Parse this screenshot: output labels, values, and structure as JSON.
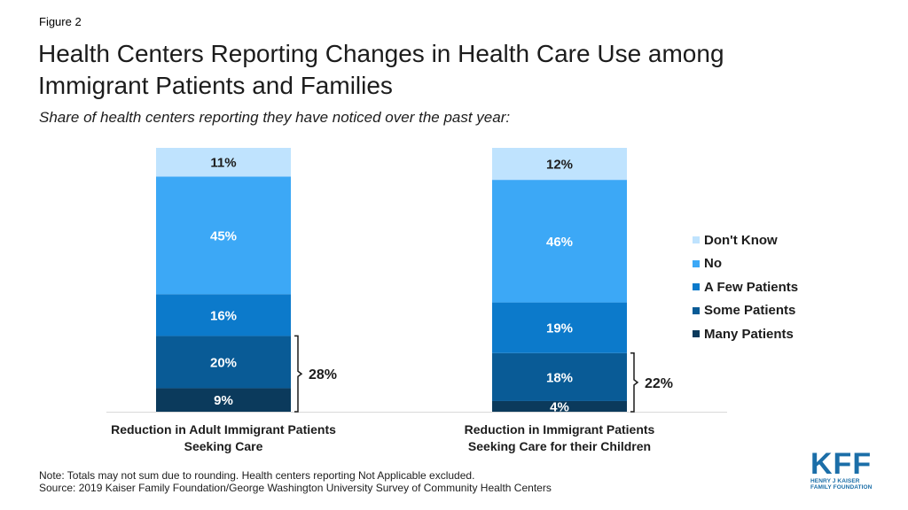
{
  "figure_label": "Figure 2",
  "title": "Health Centers Reporting Changes in Health Care Use among Immigrant Patients and Families",
  "subtitle": "Share of health centers reporting they have noticed over the past year:",
  "chart_data": {
    "type": "bar",
    "stacked": true,
    "categories": [
      "Reduction in Adult Immigrant Patients Seeking Care",
      "Reduction in Immigrant Patients Seeking Care for their Children"
    ],
    "category_lines": [
      [
        "Reduction in Adult Immigrant Patients",
        "Seeking Care"
      ],
      [
        "Reduction in Immigrant Patients",
        "Seeking Care for their Children"
      ]
    ],
    "series": [
      {
        "name": "Many Patients",
        "color": "#0b3a5c",
        "values": [
          9,
          4
        ],
        "labels": [
          "9%",
          "4%"
        ]
      },
      {
        "name": "Some Patients",
        "color": "#095b96",
        "values": [
          20,
          18
        ],
        "labels": [
          "20%",
          "18%"
        ]
      },
      {
        "name": "A Few Patients",
        "color": "#0c7acb",
        "values": [
          16,
          19
        ],
        "labels": [
          "16%",
          "19%"
        ]
      },
      {
        "name": "No",
        "color": "#3ca8f6",
        "values": [
          45,
          46
        ],
        "labels": [
          "45%",
          "46%"
        ]
      },
      {
        "name": "Don't Know",
        "color": "#bfe3fe",
        "values": [
          11,
          12
        ],
        "labels": [
          "11%",
          "12%"
        ]
      }
    ],
    "bracket_totals": [
      "28%",
      "22%"
    ],
    "legend_position": "right",
    "grid": false,
    "ylim": [
      0,
      100
    ]
  },
  "note": "Note: Totals may not sum due to rounding. Health centers reporting Not Applicable excluded.",
  "source": "Source: 2019 Kaiser Family Foundation/George Washington University Survey of Community Health Centers",
  "logo": {
    "letters": "KFF",
    "line1": "HENRY J KAISER",
    "line2": "FAMILY FOUNDATION"
  }
}
